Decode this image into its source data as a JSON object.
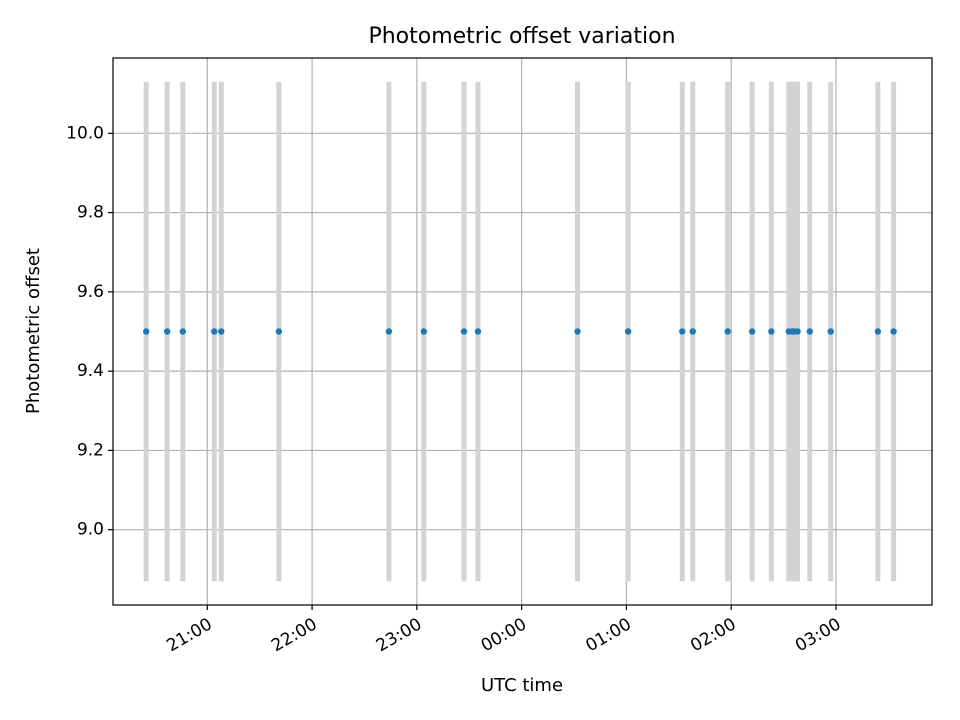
{
  "chart_data": {
    "type": "scatter",
    "title": "Photometric offset variation",
    "xlabel": "UTC time",
    "ylabel": "Photometric offset",
    "x_range": [
      "2023-01-01T20:06",
      "2023-01-02T03:55"
    ],
    "ylim": [
      8.81,
      10.19
    ],
    "grid": true,
    "x_ticks": [
      {
        "value": "2023-01-01T21:00",
        "label": "21:00"
      },
      {
        "value": "2023-01-01T22:00",
        "label": "22:00"
      },
      {
        "value": "2023-01-01T23:00",
        "label": "23:00"
      },
      {
        "value": "2023-01-02T00:00",
        "label": "00:00"
      },
      {
        "value": "2023-01-02T01:00",
        "label": "01:00"
      },
      {
        "value": "2023-01-02T02:00",
        "label": "02:00"
      },
      {
        "value": "2023-01-02T03:00",
        "label": "03:00"
      }
    ],
    "y_ticks": [
      {
        "value": 9.0,
        "label": "9.0"
      },
      {
        "value": 9.2,
        "label": "9.2"
      },
      {
        "value": 9.4,
        "label": "9.4"
      },
      {
        "value": 9.6,
        "label": "9.6"
      },
      {
        "value": 9.8,
        "label": "9.8"
      },
      {
        "value": 10.0,
        "label": "10.0"
      }
    ],
    "errorbar": {
      "low": 8.87,
      "high": 10.13
    },
    "x": [
      "2023-01-01T20:25",
      "2023-01-01T20:37",
      "2023-01-01T20:46",
      "2023-01-01T21:04",
      "2023-01-01T21:08",
      "2023-01-01T21:41",
      "2023-01-01T22:44",
      "2023-01-01T23:04",
      "2023-01-01T23:27",
      "2023-01-01T23:35",
      "2023-01-02T00:32",
      "2023-01-02T01:01",
      "2023-01-02T01:32",
      "2023-01-02T01:38",
      "2023-01-02T01:58",
      "2023-01-02T02:12",
      "2023-01-02T02:23",
      "2023-01-02T02:33",
      "2023-01-02T02:35",
      "2023-01-02T02:36",
      "2023-01-02T02:38",
      "2023-01-02T02:45",
      "2023-01-02T02:57",
      "2023-01-02T03:24",
      "2023-01-02T03:33"
    ],
    "y": [
      9.5,
      9.5,
      9.5,
      9.5,
      9.5,
      9.5,
      9.5,
      9.5,
      9.5,
      9.5,
      9.5,
      9.5,
      9.5,
      9.5,
      9.5,
      9.5,
      9.5,
      9.5,
      9.5,
      9.5,
      9.5,
      9.5,
      9.5,
      9.5,
      9.5
    ],
    "colors": {
      "point": "#1f77b4",
      "errorbar": "#d3d3d3",
      "grid": "#b0b0b0",
      "axes": "#000000"
    }
  }
}
